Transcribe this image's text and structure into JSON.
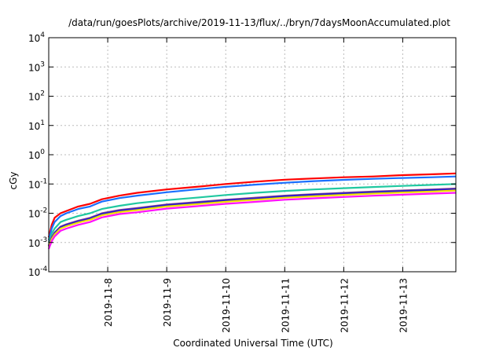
{
  "chart_data": {
    "type": "line",
    "title": "/data/run/goesPlots/archive/2019-11-13/flux/../bryn/7daysMoonAccumulated.plot",
    "xlabel": "Coordinated Universal Time (UTC)",
    "ylabel": "cGy",
    "yscale": "log",
    "ylim": [
      0.0001,
      10000
    ],
    "xlim_days_from_2019_11_07": [
      0,
      6.9
    ],
    "grid": true,
    "y_ticks": [
      {
        "value": 0.0001,
        "base": "10",
        "exp": "-4"
      },
      {
        "value": 0.001,
        "base": "10",
        "exp": "-3"
      },
      {
        "value": 0.01,
        "base": "10",
        "exp": "-2"
      },
      {
        "value": 0.1,
        "base": "10",
        "exp": "-1"
      },
      {
        "value": 1,
        "base": "10",
        "exp": "0"
      },
      {
        "value": 10,
        "base": "10",
        "exp": "1"
      },
      {
        "value": 100,
        "base": "10",
        "exp": "2"
      },
      {
        "value": 1000,
        "base": "10",
        "exp": "3"
      },
      {
        "value": 10000,
        "base": "10",
        "exp": "4"
      }
    ],
    "x_ticks": [
      {
        "day": 1,
        "label": "2019-11-8"
      },
      {
        "day": 2,
        "label": "2019-11-9"
      },
      {
        "day": 3,
        "label": "2019-11-10"
      },
      {
        "day": 4,
        "label": "2019-11-11"
      },
      {
        "day": 5,
        "label": "2019-11-12"
      },
      {
        "day": 6,
        "label": "2019-11-13"
      }
    ],
    "x": [
      0,
      0.05,
      0.1,
      0.2,
      0.3,
      0.5,
      0.7,
      0.9,
      1.2,
      1.5,
      2,
      2.5,
      3,
      3.5,
      4,
      4.5,
      5,
      5.5,
      6,
      6.5,
      6.9
    ],
    "series": [
      {
        "name": "red",
        "color": "#ff0000",
        "values": [
          0.0015,
          0.004,
          0.007,
          0.01,
          0.012,
          0.017,
          0.021,
          0.03,
          0.04,
          0.05,
          0.065,
          0.08,
          0.1,
          0.12,
          0.14,
          0.155,
          0.17,
          0.18,
          0.2,
          0.215,
          0.23
        ]
      },
      {
        "name": "blue",
        "color": "#1a6fff",
        "values": [
          0.0012,
          0.003,
          0.005,
          0.008,
          0.01,
          0.014,
          0.017,
          0.025,
          0.033,
          0.04,
          0.052,
          0.065,
          0.08,
          0.095,
          0.11,
          0.125,
          0.138,
          0.15,
          0.16,
          0.17,
          0.18
        ]
      },
      {
        "name": "green",
        "color": "#20c8a0",
        "values": [
          0.001,
          0.002,
          0.003,
          0.005,
          0.006,
          0.008,
          0.01,
          0.014,
          0.018,
          0.022,
          0.028,
          0.034,
          0.042,
          0.05,
          0.058,
          0.065,
          0.072,
          0.079,
          0.086,
          0.093,
          0.1
        ]
      },
      {
        "name": "purple",
        "color": "#8a4a8a",
        "values": [
          0.0008,
          0.0015,
          0.0022,
          0.0035,
          0.0042,
          0.0056,
          0.007,
          0.01,
          0.013,
          0.015,
          0.02,
          0.024,
          0.029,
          0.034,
          0.04,
          0.045,
          0.05,
          0.055,
          0.06,
          0.065,
          0.07
        ]
      },
      {
        "name": "dark-blue",
        "color": "#2a1ad0",
        "values": [
          0.00075,
          0.0014,
          0.0021,
          0.0033,
          0.004,
          0.0053,
          0.0066,
          0.0095,
          0.0123,
          0.0143,
          0.019,
          0.0228,
          0.0275,
          0.032,
          0.038,
          0.043,
          0.0475,
          0.052,
          0.057,
          0.062,
          0.066
        ]
      },
      {
        "name": "yellow",
        "color": "#f0e000",
        "values": [
          0.0007,
          0.0013,
          0.0019,
          0.003,
          0.0036,
          0.0048,
          0.006,
          0.0085,
          0.011,
          0.0128,
          0.017,
          0.0204,
          0.0246,
          0.029,
          0.034,
          0.038,
          0.0425,
          0.047,
          0.051,
          0.055,
          0.06
        ]
      },
      {
        "name": "magenta",
        "color": "#ff10ff",
        "values": [
          0.0006,
          0.0011,
          0.0016,
          0.0025,
          0.003,
          0.004,
          0.005,
          0.0072,
          0.0094,
          0.0108,
          0.0144,
          0.0173,
          0.021,
          0.0245,
          0.029,
          0.0324,
          0.036,
          0.0396,
          0.043,
          0.0468,
          0.05
        ]
      }
    ]
  }
}
